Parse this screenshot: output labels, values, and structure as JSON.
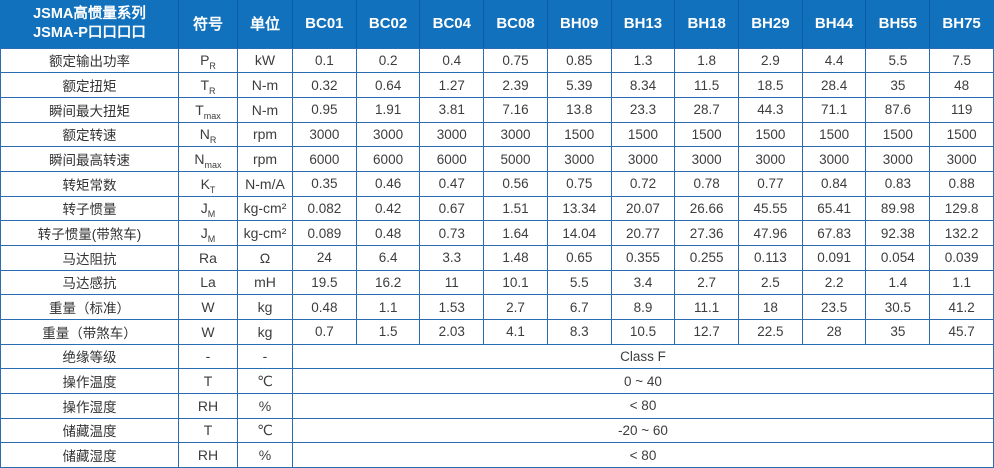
{
  "colors": {
    "header_bg": "#1271bc",
    "header_separator": "#0b5ca6",
    "grid_border": "#2a6cb0",
    "body_text": "#3a3a3a"
  },
  "header": {
    "title_line1": "JSMA高惯量系列",
    "title_line2": "JSMA-P口口口口",
    "symbol_col": "符号",
    "unit_col": "单位",
    "models": [
      "BC01",
      "BC02",
      "BC04",
      "BC08",
      "BH09",
      "BH13",
      "BH18",
      "BH29",
      "BH44",
      "BH55",
      "BH75"
    ]
  },
  "rows": [
    {
      "label": "额定输出功率",
      "symbol": "P",
      "sub": "R",
      "unit": "kW",
      "values": [
        "0.1",
        "0.2",
        "0.4",
        "0.75",
        "0.85",
        "1.3",
        "1.8",
        "2.9",
        "4.4",
        "5.5",
        "7.5"
      ]
    },
    {
      "label": "额定扭矩",
      "symbol": "T",
      "sub": "R",
      "unit": "N-m",
      "values": [
        "0.32",
        "0.64",
        "1.27",
        "2.39",
        "5.39",
        "8.34",
        "11.5",
        "18.5",
        "28.4",
        "35",
        "48"
      ]
    },
    {
      "label": "瞬间最大扭矩",
      "symbol": "T",
      "sub": "max",
      "unit": "N-m",
      "values": [
        "0.95",
        "1.91",
        "3.81",
        "7.16",
        "13.8",
        "23.3",
        "28.7",
        "44.3",
        "71.1",
        "87.6",
        "119"
      ]
    },
    {
      "label": "额定转速",
      "symbol": "N",
      "sub": "R",
      "unit": "rpm",
      "values": [
        "3000",
        "3000",
        "3000",
        "3000",
        "1500",
        "1500",
        "1500",
        "1500",
        "1500",
        "1500",
        "1500"
      ]
    },
    {
      "label": "瞬间最高转速",
      "symbol": "N",
      "sub": "max",
      "unit": "rpm",
      "values": [
        "6000",
        "6000",
        "6000",
        "5000",
        "3000",
        "3000",
        "3000",
        "3000",
        "3000",
        "3000",
        "3000"
      ]
    },
    {
      "label": "转矩常数",
      "symbol": "K",
      "sub": "T",
      "unit": "N-m/A",
      "values": [
        "0.35",
        "0.46",
        "0.47",
        "0.56",
        "0.75",
        "0.72",
        "0.78",
        "0.77",
        "0.84",
        "0.83",
        "0.88"
      ]
    },
    {
      "label": "转子惯量",
      "symbol": "J",
      "sub": "M",
      "unit": "kg-cm²",
      "values": [
        "0.082",
        "0.42",
        "0.67",
        "1.51",
        "13.34",
        "20.07",
        "26.66",
        "45.55",
        "65.41",
        "89.98",
        "129.8"
      ]
    },
    {
      "label": "转子惯量(带煞车)",
      "symbol": "J",
      "sub": "M",
      "unit": "kg-cm²",
      "values": [
        "0.089",
        "0.48",
        "0.73",
        "1.64",
        "14.04",
        "20.77",
        "27.36",
        "47.96",
        "67.83",
        "92.38",
        "132.2"
      ]
    },
    {
      "label": "马达阻抗",
      "symbol": "Ra",
      "sub": "",
      "unit": "Ω",
      "values": [
        "24",
        "6.4",
        "3.3",
        "1.48",
        "0.65",
        "0.355",
        "0.255",
        "0.113",
        "0.091",
        "0.054",
        "0.039"
      ]
    },
    {
      "label": "马达感抗",
      "symbol": "La",
      "sub": "",
      "unit": "mH",
      "values": [
        "19.5",
        "16.2",
        "11",
        "10.1",
        "5.5",
        "3.4",
        "2.7",
        "2.5",
        "2.2",
        "1.4",
        "1.1"
      ]
    },
    {
      "label": "重量（标准）",
      "symbol": "W",
      "sub": "",
      "unit": "kg",
      "values": [
        "0.48",
        "1.1",
        "1.53",
        "2.7",
        "6.7",
        "8.9",
        "11.1",
        "18",
        "23.5",
        "30.5",
        "41.2"
      ]
    },
    {
      "label": "重量（带煞车）",
      "symbol": "W",
      "sub": "",
      "unit": "kg",
      "values": [
        "0.7",
        "1.5",
        "2.03",
        "4.1",
        "8.3",
        "10.5",
        "12.7",
        "22.5",
        "28",
        "35",
        "45.7"
      ]
    },
    {
      "label": "绝缘等级",
      "symbol": "-",
      "sub": "",
      "unit": "-",
      "merged": "Class F"
    },
    {
      "label": "操作温度",
      "symbol": "T",
      "sub": "",
      "unit": "℃",
      "merged": "0 ~ 40"
    },
    {
      "label": "操作湿度",
      "symbol": "RH",
      "sub": "",
      "unit": "%",
      "merged": "< 80"
    },
    {
      "label": "储藏温度",
      "symbol": "T",
      "sub": "",
      "unit": "℃",
      "merged": "-20 ~ 60"
    },
    {
      "label": "储藏湿度",
      "symbol": "RH",
      "sub": "",
      "unit": "%",
      "merged": "< 80"
    }
  ]
}
